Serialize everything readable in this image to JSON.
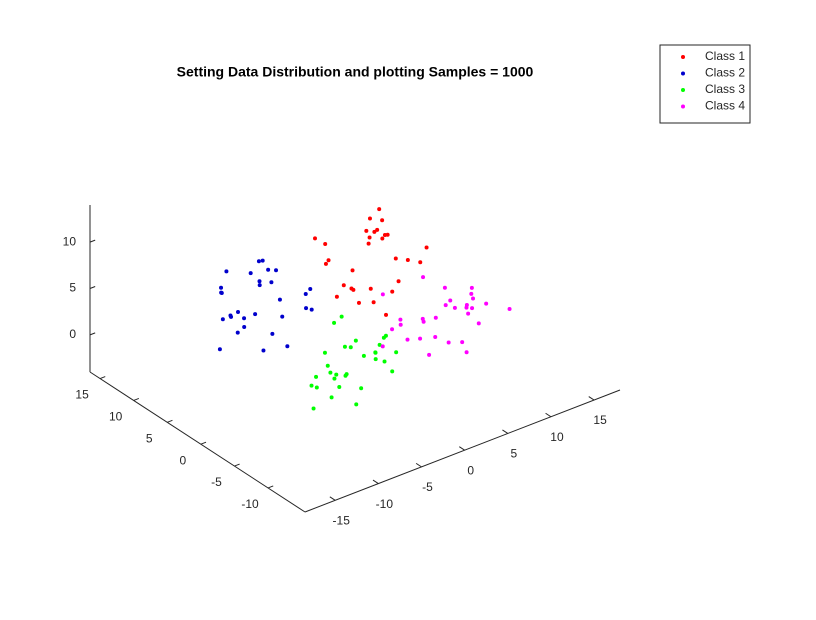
{
  "chart_data": {
    "type": "scatter3d",
    "title": "Setting Data Distribution and plotting Samples = 1000",
    "xlim": [
      -18.5,
      18
    ],
    "ylim": [
      -15.5,
      16.5
    ],
    "zlim": [
      -4,
      14
    ],
    "xticks": [
      -15,
      -10,
      -5,
      0,
      5,
      10,
      15
    ],
    "yticks": [
      -10,
      -5,
      0,
      5,
      10,
      15
    ],
    "zticks": [
      0,
      5,
      10
    ],
    "legend": "top-right",
    "series": [
      {
        "name": "Class 1",
        "color": "#ff0000",
        "x": [
          6.2,
          2.5,
          8.1,
          5.4,
          3.2,
          7.7,
          1.6,
          5.9,
          4.4,
          9.2,
          2.9,
          6.6,
          1.0,
          7.2,
          5.1,
          3.7,
          8.6,
          2.2,
          5.7,
          4.8,
          7.9,
          1.3,
          6.1,
          4.0,
          9.6,
          2.6,
          5.3,
          6.9,
          1.9,
          4.2
        ],
        "y": [
          5.9,
          4.4,
          9.2,
          2.9,
          6.6,
          1.0,
          7.2,
          5.1,
          3.7,
          8.6,
          2.2,
          5.7,
          4.8,
          7.9,
          1.3,
          6.1,
          4.0,
          9.6,
          2.6,
          5.3,
          6.9,
          1.9,
          4.2,
          6.2,
          2.5,
          8.1,
          5.4,
          3.2,
          7.7,
          1.6
        ],
        "z": [
          7.2,
          5.1,
          3.7,
          8.6,
          2.2,
          5.7,
          4.8,
          7.9,
          1.3,
          6.1,
          4.0,
          9.6,
          2.6,
          5.3,
          6.9,
          1.9,
          4.2,
          6.2,
          2.5,
          8.1,
          5.4,
          3.2,
          7.7,
          1.6,
          5.9,
          4.4,
          9.2,
          2.9,
          6.6,
          1.0
        ]
      },
      {
        "name": "Class 2",
        "color": "#0000cc",
        "x": [
          -7.6,
          -9.8,
          -5.3,
          -11.4,
          -7.1,
          -8.6,
          -3.8,
          -10.1,
          -6.4,
          -12.0,
          -5.8,
          -7.9,
          -9.3,
          -4.4,
          -10.8,
          -7.3,
          -8.2,
          -5.1,
          -11.7,
          -6.9,
          -9.0,
          -3.4,
          -10.4,
          -7.7,
          -6.1,
          -11.1,
          -8.8,
          -6.8,
          -10.5,
          -4.9
        ],
        "y": [
          4.8,
          7.9,
          1.3,
          6.1,
          4.0,
          9.6,
          2.6,
          5.3,
          6.9,
          1.9,
          4.2,
          6.2,
          2.5,
          8.1,
          5.4,
          3.2,
          7.7,
          1.6,
          5.9,
          4.4,
          9.2,
          2.9,
          6.6,
          1.0,
          7.2,
          5.1,
          3.7,
          8.6,
          2.2,
          5.7
        ],
        "z": [
          9.6,
          2.6,
          5.3,
          6.9,
          1.9,
          4.2,
          6.2,
          2.5,
          8.1,
          5.4,
          3.2,
          7.7,
          1.6,
          5.9,
          4.4,
          9.2,
          2.9,
          6.6,
          1.0,
          7.2,
          5.1,
          3.7,
          8.6,
          2.2,
          5.7,
          4.8,
          7.9,
          1.3,
          6.1,
          4.0
        ]
      },
      {
        "name": "Class 3",
        "color": "#00ff00",
        "x": [
          -3.4,
          -9.0,
          -2.8,
          -4.9,
          -6.3,
          -1.4,
          -7.8,
          -4.3,
          -5.2,
          -2.1,
          -8.7,
          -3.9,
          -6.0,
          -0.4,
          -7.4,
          -4.7,
          -3.1,
          -8.1,
          -5.8,
          -3.8,
          -7.5,
          -1.9,
          -4.6,
          -6.8,
          -2.3,
          -8.4,
          -4.1,
          -5.6,
          -0.8,
          -7.1
        ],
        "y": [
          -2.3,
          -8.4,
          -4.1,
          -5.6,
          -0.8,
          -7.1,
          -3.4,
          -9.0,
          -2.8,
          -4.9,
          -6.3,
          -1.4,
          -7.8,
          -4.3,
          -5.2,
          -2.1,
          -8.7,
          -3.9,
          -6.0,
          -0.4,
          -7.4,
          -4.7,
          -3.1,
          -8.1,
          -5.8,
          -3.8,
          -7.5,
          -1.9,
          -4.6,
          -6.8
        ],
        "z": [
          -0.8,
          2.7,
          1.8,
          4.9,
          -1.7,
          3.1,
          1.0,
          6.6,
          -0.4,
          2.3,
          3.9,
          -1.1,
          1.2,
          3.2,
          -0.5,
          5.1,
          2.4,
          0.2,
          4.7,
          -1.4,
          2.9,
          1.4,
          6.2,
          -0.1,
          3.6,
          -2.0,
          4.2,
          2.1,
          0.7,
          5.6
        ]
      },
      {
        "name": "Class 4",
        "color": "#ff00ff",
        "x": [
          4.3,
          9.1,
          7.0,
          12.6,
          5.6,
          8.3,
          9.9,
          4.9,
          7.2,
          9.2,
          5.5,
          11.1,
          8.4,
          6.2,
          10.7,
          4.6,
          8.9,
          7.4,
          12.2,
          5.9,
          9.6,
          4.0,
          10.2,
          8.1,
          6.7,
          11.6,
          5.2,
          8.7,
          7.8,
          10.9
        ],
        "y": [
          2.2,
          -4.1,
          -0.4,
          -6.0,
          0.2,
          -1.9,
          -3.3,
          1.6,
          -4.8,
          -1.3,
          -2.2,
          0.9,
          -5.7,
          -0.9,
          -3.0,
          2.6,
          -4.4,
          -1.7,
          -0.1,
          -5.1,
          -2.8,
          -0.8,
          -4.5,
          1.1,
          -1.6,
          -3.8,
          0.7,
          -5.4,
          -1.1,
          -2.6
        ],
        "z": [
          2.9,
          -2.1,
          0.2,
          2.2,
          -1.5,
          4.1,
          1.4,
          -0.8,
          3.7,
          -2.4,
          1.9,
          0.4,
          5.2,
          -1.1,
          2.6,
          -3.0,
          3.2,
          1.1,
          -0.3,
          4.6,
          -1.8,
          1.7,
          0.8,
          3.9,
          -2.7,
          2.1,
          0.0,
          5.6,
          -1.4,
          1.3
        ]
      }
    ]
  }
}
